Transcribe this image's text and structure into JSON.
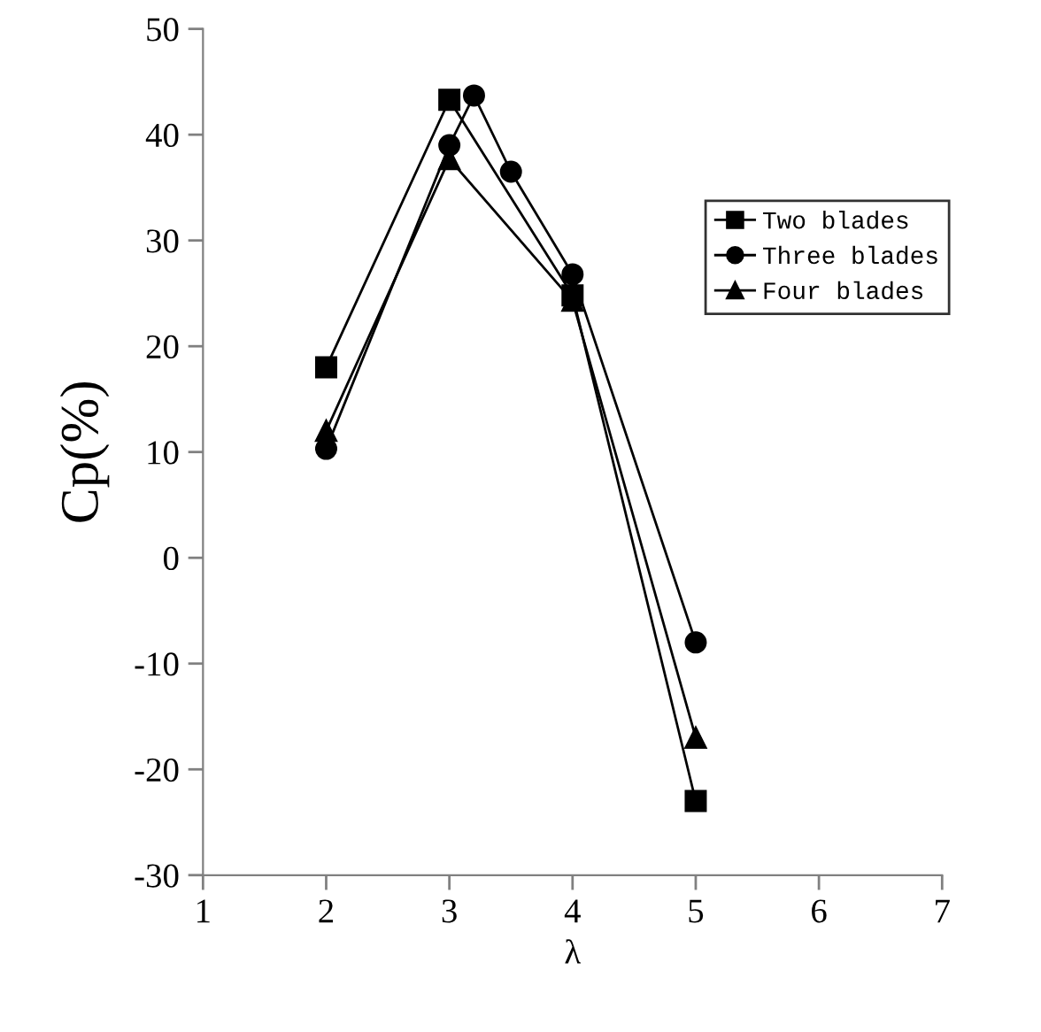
{
  "chart_data": {
    "type": "line",
    "xlabel": "λ",
    "ylabel": "Cp(%)",
    "xlim": [
      1,
      7
    ],
    "xticks": [
      1,
      2,
      3,
      4,
      5,
      6,
      7
    ],
    "ylim": [
      -30,
      50
    ],
    "yticks": [
      -30,
      -20,
      -10,
      0,
      10,
      20,
      30,
      40,
      50
    ],
    "grid": false,
    "legend": "right",
    "line_style": "solid",
    "series": [
      {
        "name": "Two blades",
        "color": "#000000",
        "marker": "square",
        "x": [
          2,
          3,
          4,
          5
        ],
        "values": [
          18,
          43.3,
          24.8,
          -23
        ]
      },
      {
        "name": "Three blades",
        "color": "#000000",
        "marker": "circle",
        "x": [
          2,
          3,
          3.2,
          3.5,
          4,
          5
        ],
        "values": [
          10.3,
          39,
          43.7,
          36.5,
          26.8,
          -8
        ]
      },
      {
        "name": "Four blades",
        "color": "#000000",
        "marker": "triangle",
        "x": [
          2,
          3,
          4,
          5
        ],
        "values": [
          12,
          37.7,
          24.3,
          -17
        ]
      }
    ]
  }
}
